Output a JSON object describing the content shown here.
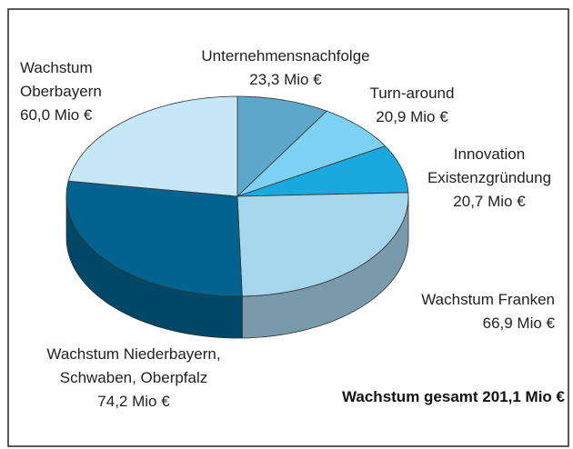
{
  "chart_data": {
    "type": "pie3d",
    "categories": [
      "Unternehmensnachfolge",
      "Turn-around",
      "Innovation\nExistenzgründung",
      "Wachstum Franken",
      "Wachstum Niederbayern,\nSchwaben, Oberpfalz",
      "Wachstum\nOberbayern"
    ],
    "values": [
      23.3,
      20.9,
      20.7,
      66.9,
      74.2,
      60.0
    ],
    "value_labels": [
      "23,3 Mio €",
      "20,9 Mio €",
      "20,7 Mio €",
      "66,9 Mio €",
      "74,2 Mio €",
      "60,0 Mio €"
    ],
    "colors": [
      "#5ba8cb",
      "#7dd2f3",
      "#1aa9de",
      "#a6d6ee",
      "#02638f",
      "#c6e7f8"
    ],
    "annotation": "Wachstum gesamt 201,1 Mio €"
  }
}
